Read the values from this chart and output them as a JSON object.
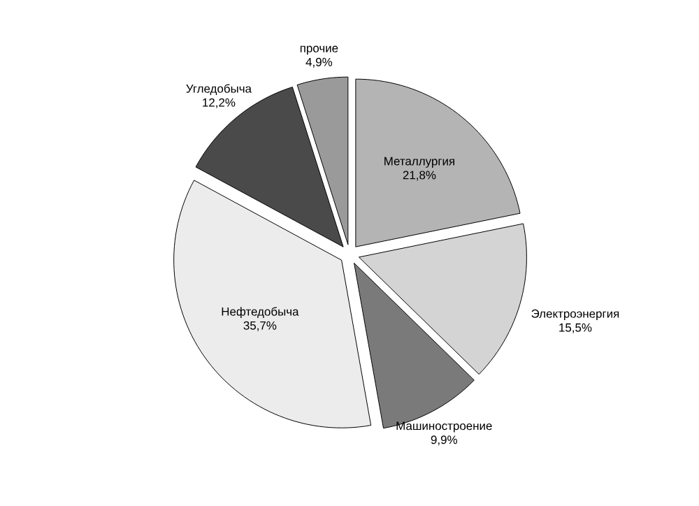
{
  "chart_data": {
    "type": "pie",
    "categories": [
      "Металлургия",
      "Электроэнергия",
      "Машиностроение",
      "Нефтедобыча",
      "Угледобыча",
      "прочие"
    ],
    "values": [
      21.8,
      15.5,
      9.9,
      35.7,
      12.2,
      4.9
    ],
    "value_labels": [
      "21,8%",
      "15,5%",
      "9,9%",
      "35,7%",
      "12,2%",
      "4,9%"
    ],
    "colors": [
      "#b4b4b4",
      "#d4d4d4",
      "#7a7a7a",
      "#ececec",
      "#4a4a4a",
      "#9a9a9a"
    ]
  }
}
